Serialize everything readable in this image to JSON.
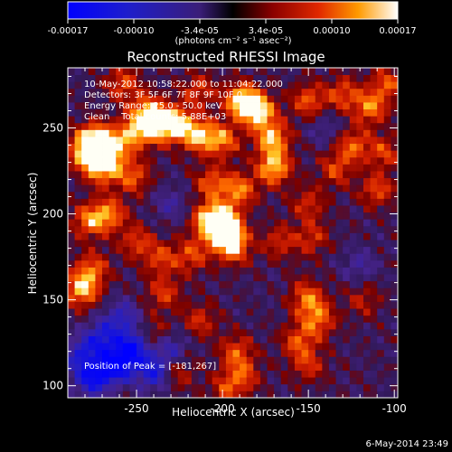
{
  "chart_data": {
    "type": "heatmap",
    "title": "Reconstructed RHESSI Image",
    "xlabel": "Heliocentric X (arcsec)",
    "ylabel": "Heliocentric Y (arcsec)",
    "xlim": [
      -290,
      -98
    ],
    "ylim": [
      93,
      285
    ],
    "x_ticks": [
      -250,
      -200,
      -150,
      -100
    ],
    "y_ticks": [
      100,
      150,
      200,
      250
    ],
    "colorbar": {
      "range": [
        -0.00017,
        0.00017
      ],
      "ticks": [
        "-0.00017",
        "-0.00010",
        "-3.4e-05",
        "3.4e-05",
        "0.00010",
        "0.00017"
      ],
      "unit_label": "(photons cm⁻² s⁻¹ asec⁻²)"
    },
    "annotations": [
      "10-May-2012 10:58:22.000 to 11:04:22.000",
      "Detectors: 3F 5F 6F 7F 8F 9F 10F 0",
      "Energy Range: 25.0 - 50.0 keV",
      "Clean    Total counts: 5.88E+03"
    ],
    "peak_label": "Position of Peak = [-181,267]",
    "peak": [
      -181,
      267
    ],
    "footer": "6-May-2014 23:49",
    "grid": false,
    "colors": {
      "background": "#000000",
      "axes": "#ffffff"
    },
    "bright_regions": [
      {
        "x": -279,
        "y": 236,
        "v": 0.9
      },
      {
        "x": -274,
        "y": 243,
        "v": 1.0
      },
      {
        "x": -266,
        "y": 236,
        "v": 0.85
      },
      {
        "x": -270,
        "y": 226,
        "v": 0.7
      },
      {
        "x": -252,
        "y": 247,
        "v": 0.8
      },
      {
        "x": -244,
        "y": 260,
        "v": 0.75
      },
      {
        "x": -238,
        "y": 251,
        "v": 0.7
      },
      {
        "x": -252,
        "y": 222,
        "v": 0.6
      },
      {
        "x": -266,
        "y": 200,
        "v": 0.7
      },
      {
        "x": -278,
        "y": 196,
        "v": 0.65
      },
      {
        "x": -250,
        "y": 184,
        "v": 0.5
      },
      {
        "x": -228,
        "y": 253,
        "v": 0.95
      },
      {
        "x": -214,
        "y": 246,
        "v": 0.85
      },
      {
        "x": -200,
        "y": 243,
        "v": 0.7
      },
      {
        "x": -189,
        "y": 266,
        "v": 1.0
      },
      {
        "x": -179,
        "y": 260,
        "v": 0.95
      },
      {
        "x": -171,
        "y": 244,
        "v": 0.85
      },
      {
        "x": -170,
        "y": 227,
        "v": 0.9
      },
      {
        "x": -190,
        "y": 214,
        "v": 0.7
      },
      {
        "x": -200,
        "y": 196,
        "v": 0.9
      },
      {
        "x": -198,
        "y": 188,
        "v": 1.0
      },
      {
        "x": -208,
        "y": 196,
        "v": 0.8
      },
      {
        "x": -193,
        "y": 180,
        "v": 0.6
      },
      {
        "x": -218,
        "y": 176,
        "v": 0.55
      },
      {
        "x": -236,
        "y": 174,
        "v": 0.5
      },
      {
        "x": -206,
        "y": 218,
        "v": 0.6
      },
      {
        "x": -150,
        "y": 266,
        "v": 0.6
      },
      {
        "x": -130,
        "y": 270,
        "v": 0.55
      },
      {
        "x": -124,
        "y": 240,
        "v": 0.6
      },
      {
        "x": -106,
        "y": 236,
        "v": 0.5
      },
      {
        "x": -110,
        "y": 214,
        "v": 0.55
      },
      {
        "x": -150,
        "y": 206,
        "v": 0.45
      },
      {
        "x": -167,
        "y": 184,
        "v": 0.45
      },
      {
        "x": -148,
        "y": 186,
        "v": 0.45
      },
      {
        "x": -282,
        "y": 156,
        "v": 0.85
      },
      {
        "x": -276,
        "y": 168,
        "v": 0.6
      },
      {
        "x": -234,
        "y": 154,
        "v": 0.5
      },
      {
        "x": -213,
        "y": 138,
        "v": 0.45
      },
      {
        "x": -192,
        "y": 120,
        "v": 0.55
      },
      {
        "x": -188,
        "y": 106,
        "v": 0.5
      },
      {
        "x": -198,
        "y": 98,
        "v": 0.45
      },
      {
        "x": -150,
        "y": 150,
        "v": 0.65
      },
      {
        "x": -144,
        "y": 138,
        "v": 0.6
      },
      {
        "x": -156,
        "y": 126,
        "v": 0.55
      },
      {
        "x": -150,
        "y": 112,
        "v": 0.45
      },
      {
        "x": -118,
        "y": 150,
        "v": 0.35
      },
      {
        "x": -160,
        "y": 160,
        "v": 0.4
      },
      {
        "x": -114,
        "y": 262,
        "v": 0.7
      },
      {
        "x": -104,
        "y": 276,
        "v": 0.55
      },
      {
        "x": -134,
        "y": 226,
        "v": 0.5
      },
      {
        "x": -226,
        "y": 108,
        "v": 0.4
      },
      {
        "x": -240,
        "y": 130,
        "v": 0.35
      },
      {
        "x": -214,
        "y": 272,
        "v": 0.5
      },
      {
        "x": -258,
        "y": 276,
        "v": 0.55
      }
    ],
    "dark_regions": [
      {
        "x": -262,
        "y": 112,
        "v": -1.0
      },
      {
        "x": -252,
        "y": 122,
        "v": -0.85
      },
      {
        "x": -276,
        "y": 104,
        "v": -0.8
      },
      {
        "x": -240,
        "y": 108,
        "v": -0.7
      },
      {
        "x": -270,
        "y": 128,
        "v": -0.65
      },
      {
        "x": -258,
        "y": 140,
        "v": -0.5
      },
      {
        "x": -230,
        "y": 122,
        "v": -0.45
      },
      {
        "x": -282,
        "y": 118,
        "v": -0.6
      },
      {
        "x": -162,
        "y": 160,
        "v": -0.35
      },
      {
        "x": -120,
        "y": 170,
        "v": -0.3
      },
      {
        "x": -230,
        "y": 206,
        "v": -0.3
      },
      {
        "x": -140,
        "y": 250,
        "v": -0.25
      }
    ]
  }
}
